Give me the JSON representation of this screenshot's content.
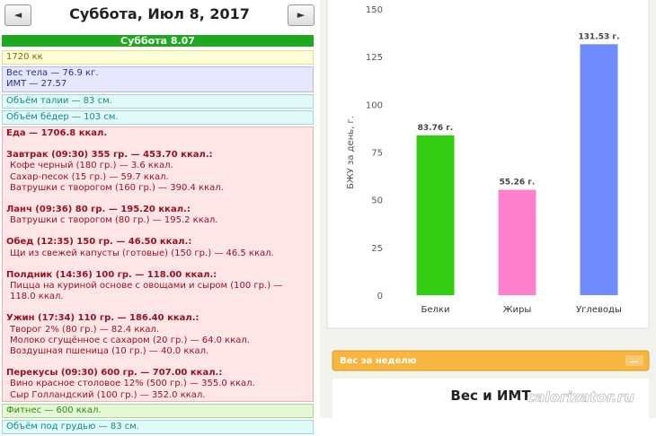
{
  "header": {
    "prev": "◄",
    "title": "Суббота, Июл 8, 2017",
    "next": "►"
  },
  "diary": {
    "day": "Суббота 8.07",
    "calories": "1720 кк",
    "weight": "Вес тела — 76.9 кг.",
    "bmi": "ИМТ — 27.57",
    "waist": "Объём талии — 83 см.",
    "hips": "Объём бёдер — 103 см.",
    "food": {
      "total": "Еда — 1706.8 ккал.",
      "meals": [
        {
          "header": "Завтрак (09:30) 355 гр. — 453.70 ккал.:",
          "items": [
            "Кофе черный (180 гр.) — 3.6 ккал.",
            "Сахар-песок (15 гр.) — 59.7 ккал.",
            "Ватрушки с творогом (160 гр.) — 390.4 ккал."
          ]
        },
        {
          "header": "Ланч (09:36) 80 гр. — 195.20 ккал.:",
          "items": [
            "Ватрушки с творогом (80 гр.) — 195.2 ккал."
          ]
        },
        {
          "header": "Обед (12:35) 150 гр. — 46.50 ккал.:",
          "items": [
            "Щи из свежей капусты (готовые) (150 гр.) — 46.5 ккал."
          ]
        },
        {
          "header": "Полдник (14:36) 100 гр. — 118.00 ккал.:",
          "items": [
            "Пицца на куриной основе с овощами и сыром (100 гр.) — 118.0 ккал."
          ]
        },
        {
          "header": "Ужин (17:34) 110 гр. — 186.40 ккал.:",
          "items": [
            "Творог 2% (80 гр.) — 82.4 ккал.",
            "Молоко сгущённое с сахаром (20 гр.) — 64.0 ккал.",
            "Воздушная пшеница (10 гр.) — 40.0 ккал."
          ]
        },
        {
          "header": "Перекусы (09:30) 600 гр. — 707.00 ккал.:",
          "items": [
            "Вино красное столовое 12% (500 гр.) — 355.0 ккал.",
            "Сыр Голландский (100 гр.) — 352.0 ккал."
          ]
        }
      ]
    },
    "fitness": "Фитнес — 600 ккал.",
    "underbust": "Объём под грудью — 83 см."
  },
  "chart_data": {
    "type": "bar",
    "y_label": "БЖУ за день, г.",
    "categories": [
      "Белки",
      "Жиры",
      "Углеводы"
    ],
    "values": [
      83.76,
      55.26,
      131.53
    ],
    "value_labels": [
      "83.76 г.",
      "55.26 г.",
      "131.53 г."
    ],
    "colors": [
      "#33cc11",
      "#ff7fcc",
      "#6f8cff"
    ],
    "ylim": [
      0,
      150
    ],
    "yticks": [
      0,
      25,
      50,
      75,
      100,
      125,
      150
    ],
    "grid": false
  },
  "weekly_widget": {
    "title": "Вес за неделю",
    "toggle": "—",
    "chart_title": "Вес и ИМТ"
  },
  "watermark": "calorizator.ru"
}
